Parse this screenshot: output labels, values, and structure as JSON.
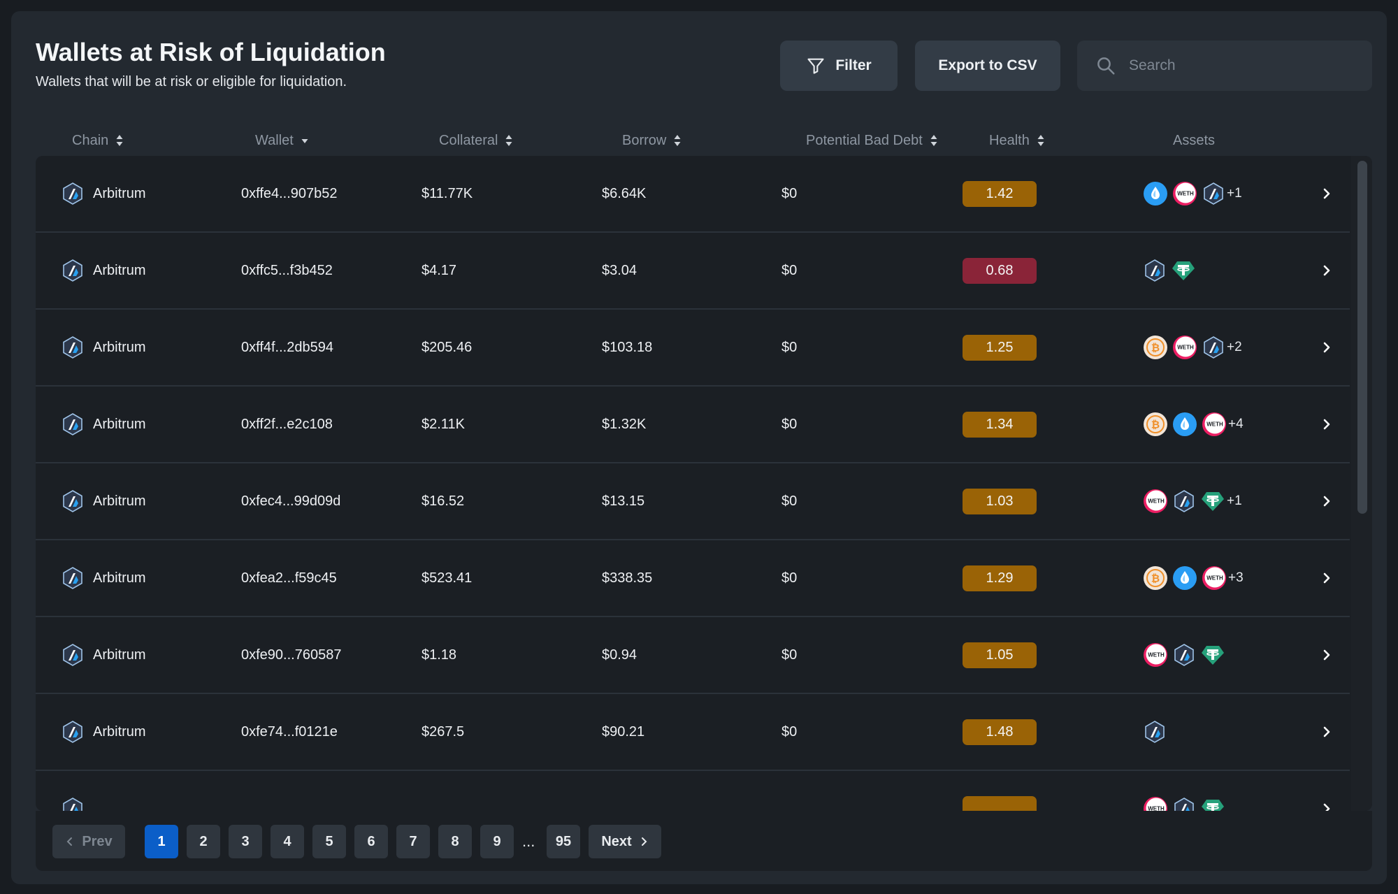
{
  "header": {
    "title": "Wallets at Risk of Liquidation",
    "subtitle": "Wallets that will be at risk or eligible for liquidation."
  },
  "toolbar": {
    "filter_label": "Filter",
    "export_label": "Export to CSV",
    "search_placeholder": "Search"
  },
  "columns": [
    "Chain",
    "Wallet",
    "Collateral",
    "Borrow",
    "Potential Bad Debt",
    "Health",
    "Assets"
  ],
  "colors": {
    "health_warn": "#9a6306",
    "health_danger": "#8a2438",
    "accent": "#0b5ec8"
  },
  "rows": [
    {
      "chain": "Arbitrum",
      "wallet": "0xffe4...907b52",
      "collateral": "$11.77K",
      "borrow": "$6.64K",
      "bad_debt": "$0",
      "health": "1.42",
      "health_status": "warn",
      "assets": [
        "drop-icon",
        "weth-icon",
        "arbitrum-icon"
      ],
      "more": "+1"
    },
    {
      "chain": "Arbitrum",
      "wallet": "0xffc5...f3b452",
      "collateral": "$4.17",
      "borrow": "$3.04",
      "bad_debt": "$0",
      "health": "0.68",
      "health_status": "danger",
      "assets": [
        "arbitrum-icon",
        "tether-icon"
      ],
      "more": ""
    },
    {
      "chain": "Arbitrum",
      "wallet": "0xff4f...2db594",
      "collateral": "$205.46",
      "borrow": "$103.18",
      "bad_debt": "$0",
      "health": "1.25",
      "health_status": "warn",
      "assets": [
        "bitcoin-icon",
        "weth-icon",
        "arbitrum-icon"
      ],
      "more": "+2"
    },
    {
      "chain": "Arbitrum",
      "wallet": "0xff2f...e2c108",
      "collateral": "$2.11K",
      "borrow": "$1.32K",
      "bad_debt": "$0",
      "health": "1.34",
      "health_status": "warn",
      "assets": [
        "bitcoin-icon",
        "drop-icon",
        "weth-icon"
      ],
      "more": "+4"
    },
    {
      "chain": "Arbitrum",
      "wallet": "0xfec4...99d09d",
      "collateral": "$16.52",
      "borrow": "$13.15",
      "bad_debt": "$0",
      "health": "1.03",
      "health_status": "warn",
      "assets": [
        "weth-icon",
        "arbitrum-icon",
        "tether-icon"
      ],
      "more": "+1"
    },
    {
      "chain": "Arbitrum",
      "wallet": "0xfea2...f59c45",
      "collateral": "$523.41",
      "borrow": "$338.35",
      "bad_debt": "$0",
      "health": "1.29",
      "health_status": "warn",
      "assets": [
        "bitcoin-icon",
        "drop-icon",
        "weth-icon"
      ],
      "more": "+3"
    },
    {
      "chain": "Arbitrum",
      "wallet": "0xfe90...760587",
      "collateral": "$1.18",
      "borrow": "$0.94",
      "bad_debt": "$0",
      "health": "1.05",
      "health_status": "warn",
      "assets": [
        "weth-icon",
        "arbitrum-icon",
        "tether-icon"
      ],
      "more": ""
    },
    {
      "chain": "Arbitrum",
      "wallet": "0xfe74...f0121e",
      "collateral": "$267.5",
      "borrow": "$90.21",
      "bad_debt": "$0",
      "health": "1.48",
      "health_status": "warn",
      "assets": [
        "arbitrum-icon"
      ],
      "more": ""
    },
    {
      "chain": "",
      "wallet": "",
      "collateral": "",
      "borrow": "",
      "bad_debt": "",
      "health": "",
      "health_status": "warn",
      "assets": [
        "weth-icon",
        "arbitrum-icon",
        "tether-icon"
      ],
      "more": ""
    }
  ],
  "pagination": {
    "prev_label": "Prev",
    "next_label": "Next",
    "pages": [
      "1",
      "2",
      "3",
      "4",
      "5",
      "6",
      "7",
      "8",
      "9"
    ],
    "ellipsis": "...",
    "last_page": "95",
    "current": "1"
  }
}
